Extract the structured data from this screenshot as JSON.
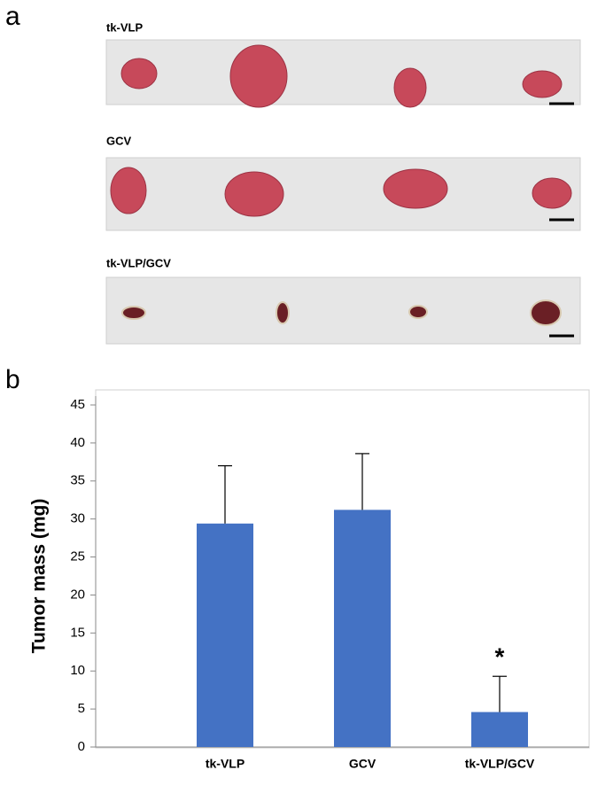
{
  "panel_a": {
    "label": "a",
    "strips": [
      "tk-VLP",
      "GCV",
      "tk-VLP/GCV"
    ]
  },
  "chart_data": {
    "type": "bar",
    "panel_label": "b",
    "ylabel": "Tumor mass (mg)",
    "categories": [
      "tk-VLP",
      "GCV",
      "tk-VLP/GCV"
    ],
    "values": [
      29.4,
      31.2,
      4.6
    ],
    "errors": [
      7.6,
      7.4,
      4.7
    ],
    "color": "#4472c4",
    "ylim": [
      0,
      45
    ],
    "yticks": [
      0,
      5,
      10,
      15,
      20,
      25,
      30,
      35,
      40,
      45
    ],
    "grid": false,
    "annotations": [
      {
        "text": "*",
        "category": 2
      }
    ]
  }
}
